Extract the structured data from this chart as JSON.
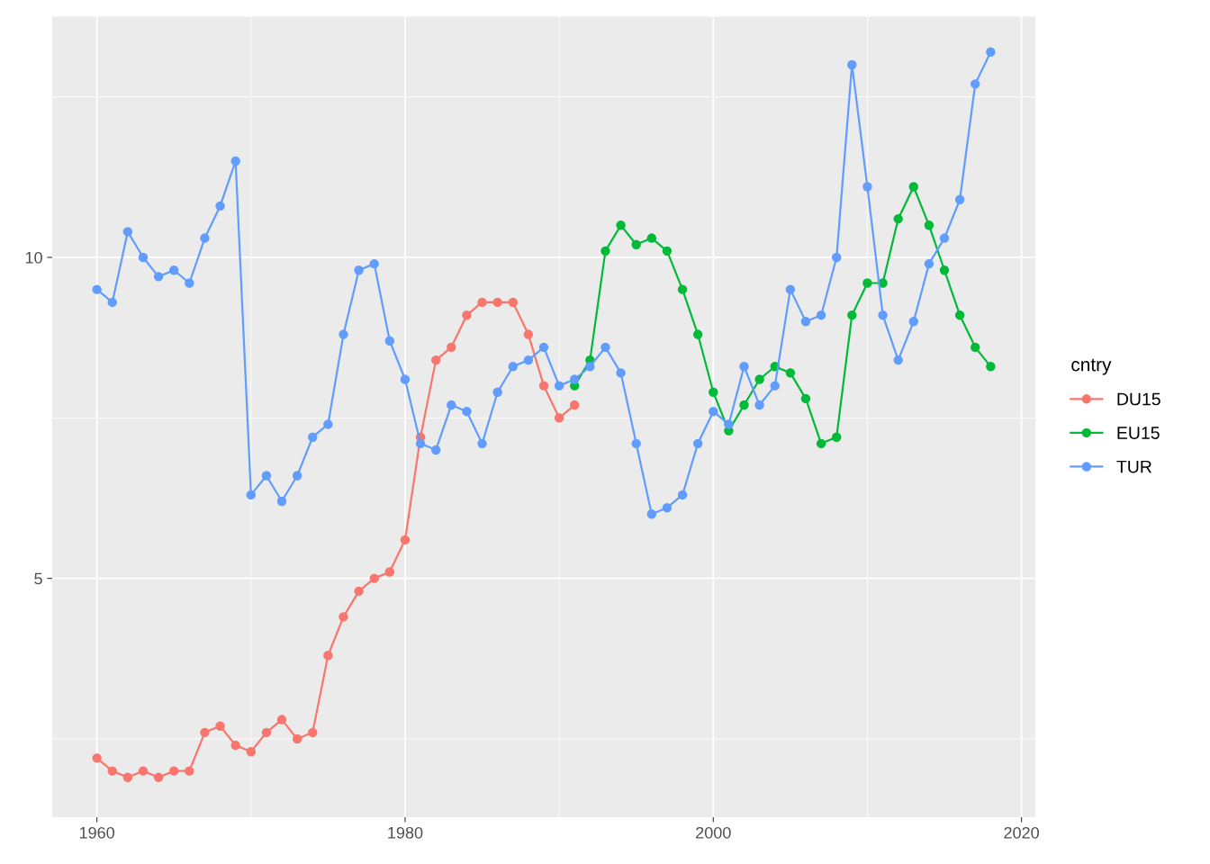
{
  "chart_data": {
    "type": "line",
    "xlim": [
      1957.1,
      2020.9
    ],
    "xticks": [
      1960,
      1980,
      2000,
      2020
    ],
    "ylim": [
      1.28,
      13.75
    ],
    "yticks": [
      5,
      10
    ],
    "grid": true,
    "legend": "right",
    "legend_title": "cntry",
    "marker": "circle",
    "line_style": "solid",
    "series": [
      {
        "name": "DU15",
        "color": "#f8766d",
        "x": [
          1960,
          1961,
          1962,
          1963,
          1964,
          1965,
          1966,
          1967,
          1968,
          1969,
          1970,
          1971,
          1972,
          1973,
          1974,
          1975,
          1976,
          1977,
          1978,
          1979,
          1980,
          1981,
          1982,
          1983,
          1984,
          1985,
          1986,
          1987,
          1988,
          1989,
          1990,
          1991
        ],
        "values": [
          2.2,
          2.0,
          1.9,
          2.0,
          1.9,
          2.0,
          2.0,
          2.6,
          2.7,
          2.4,
          2.3,
          2.6,
          2.8,
          2.5,
          2.6,
          3.8,
          4.4,
          4.8,
          5.0,
          5.1,
          5.6,
          7.2,
          8.4,
          8.6,
          9.1,
          9.3,
          9.3,
          9.3,
          8.8,
          8.0,
          7.5,
          7.7
        ]
      },
      {
        "name": "EU15",
        "color": "#00ba38",
        "x": [
          1991,
          1992,
          1993,
          1994,
          1995,
          1996,
          1997,
          1998,
          1999,
          2000,
          2001,
          2002,
          2003,
          2004,
          2005,
          2006,
          2007,
          2008,
          2009,
          2010,
          2011,
          2012,
          2013,
          2014,
          2015,
          2016,
          2017,
          2018
        ],
        "values": [
          8.0,
          8.4,
          10.1,
          10.5,
          10.2,
          10.3,
          10.1,
          9.5,
          8.8,
          7.9,
          7.3,
          7.7,
          8.1,
          8.3,
          8.2,
          7.8,
          7.1,
          7.2,
          9.1,
          9.6,
          9.6,
          10.6,
          11.1,
          10.5,
          9.8,
          9.1,
          8.6,
          8.3
        ]
      },
      {
        "name": "TUR",
        "color": "#619cff",
        "x": [
          1960,
          1961,
          1962,
          1963,
          1964,
          1965,
          1966,
          1967,
          1968,
          1969,
          1970,
          1971,
          1972,
          1973,
          1974,
          1975,
          1976,
          1977,
          1978,
          1979,
          1980,
          1981,
          1982,
          1983,
          1984,
          1985,
          1986,
          1987,
          1988,
          1989,
          1990,
          1991,
          1992,
          1993,
          1994,
          1995,
          1996,
          1997,
          1998,
          1999,
          2000,
          2001,
          2002,
          2003,
          2004,
          2005,
          2006,
          2007,
          2008,
          2009,
          2010,
          2011,
          2012,
          2013,
          2014,
          2015,
          2016,
          2017,
          2018
        ],
        "values": [
          9.5,
          9.3,
          10.4,
          10.0,
          9.7,
          9.8,
          9.6,
          10.3,
          10.8,
          11.5,
          6.3,
          6.6,
          6.2,
          6.6,
          7.2,
          7.4,
          8.8,
          9.8,
          9.9,
          8.7,
          8.1,
          7.1,
          7.0,
          7.7,
          7.6,
          7.1,
          7.9,
          8.3,
          8.4,
          8.6,
          8.0,
          8.1,
          8.3,
          8.6,
          8.2,
          7.1,
          6.0,
          6.1,
          6.3,
          7.1,
          7.6,
          7.4,
          8.3,
          7.7,
          8.0,
          9.5,
          9.0,
          9.1,
          10.0,
          13.0,
          11.1,
          9.1,
          8.4,
          9.0,
          9.9,
          10.3,
          10.9,
          12.7,
          13.2
        ]
      }
    ]
  }
}
